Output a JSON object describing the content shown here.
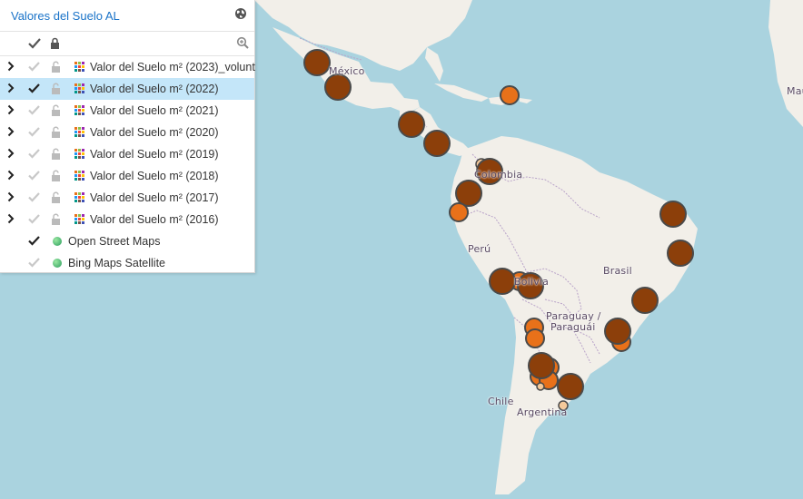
{
  "panel": {
    "title": "Valores del Suelo AL",
    "header_icon": "globe-icon",
    "toolbar_icons": [
      "check-all-icon",
      "lock-icon",
      "zoom-icon"
    ]
  },
  "layers": [
    {
      "label": "Valor del Suelo m² (2023)_volunt",
      "visible": false,
      "selected": false
    },
    {
      "label": "Valor del Suelo m² (2022)",
      "visible": true,
      "selected": true
    },
    {
      "label": "Valor del Suelo m² (2021)",
      "visible": false,
      "selected": false
    },
    {
      "label": "Valor del Suelo m² (2020)",
      "visible": false,
      "selected": false
    },
    {
      "label": "Valor del Suelo m² (2019)",
      "visible": false,
      "selected": false
    },
    {
      "label": "Valor del Suelo m² (2018)",
      "visible": false,
      "selected": false
    },
    {
      "label": "Valor del Suelo m² (2017)",
      "visible": false,
      "selected": false
    },
    {
      "label": "Valor del Suelo m² (2016)",
      "visible": false,
      "selected": false
    }
  ],
  "base_layers": [
    {
      "label": "Open Street Maps",
      "visible": true
    },
    {
      "label": "Bing Maps Satellite",
      "visible": false
    }
  ],
  "map_labels": {
    "mexico": "México",
    "colombia": "Colombia",
    "peru": "Perú",
    "brasil": "Brasil",
    "bolivia": "Bolivia",
    "paraguay_1": "Paraguay /",
    "paraguay_2": "Paraguái",
    "chile": "Chile",
    "argentina": "Argentina",
    "mauritania": "Mau"
  },
  "colors": {
    "ocean": "#aad3df",
    "land": "#f2efe9",
    "border": "#b9a3c9",
    "marker_dark": "#8c3f0a",
    "marker_mid": "#e8711a",
    "marker_light": "#f4c99a",
    "marker_stroke": "#4a4a4a",
    "selected_row": "#c4e6f9"
  }
}
